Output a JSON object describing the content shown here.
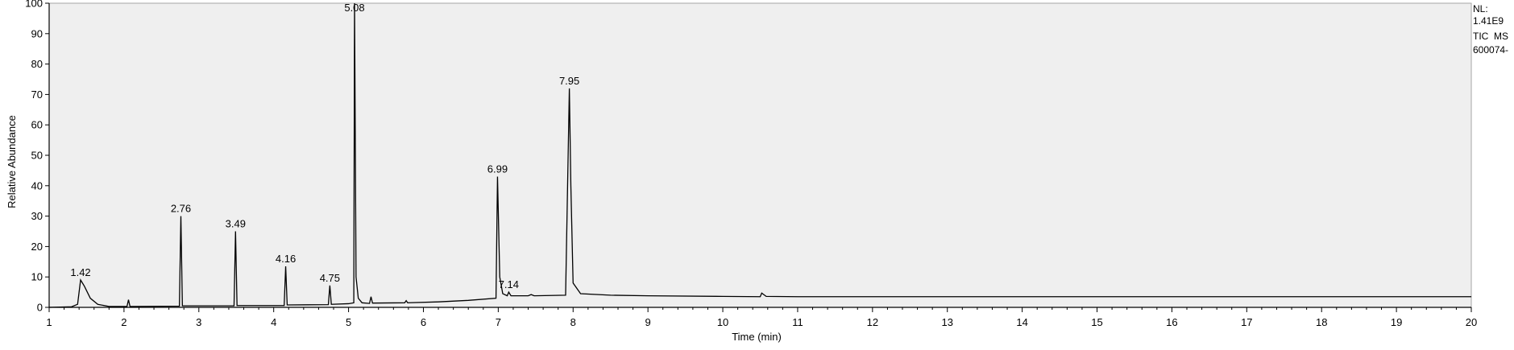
{
  "chart_data": {
    "type": "line",
    "xlabel": "Time (min)",
    "ylabel": "Relative Abundance",
    "xlim": [
      1,
      20
    ],
    "ylim": [
      0,
      100
    ],
    "x_ticks": [
      "1",
      "2",
      "3",
      "4",
      "5",
      "6",
      "7",
      "8",
      "9",
      "10",
      "11",
      "12",
      "13",
      "14",
      "15",
      "16",
      "17",
      "18",
      "19",
      "20"
    ],
    "y_ticks": [
      "0",
      "10",
      "20",
      "30",
      "40",
      "50",
      "60",
      "70",
      "80",
      "90",
      "100"
    ],
    "info": [
      "NL:",
      "1.41E9",
      "TIC  MS",
      "600074-"
    ],
    "peak_labels": [
      {
        "x": 1.42,
        "y": 9,
        "text": "1.42"
      },
      {
        "x": 2.76,
        "y": 30,
        "text": "2.76"
      },
      {
        "x": 3.49,
        "y": 25,
        "text": "3.49"
      },
      {
        "x": 4.16,
        "y": 13.5,
        "text": "4.16"
      },
      {
        "x": 4.75,
        "y": 7.2,
        "text": "4.75"
      },
      {
        "x": 5.08,
        "y": 100,
        "text": "5.08"
      },
      {
        "x": 6.99,
        "y": 43,
        "text": "6.99"
      },
      {
        "x": 7.14,
        "y": 5,
        "text": "7.14"
      },
      {
        "x": 7.95,
        "y": 72,
        "text": "7.95"
      }
    ],
    "series": [
      {
        "points": [
          [
            1.0,
            0.0
          ],
          [
            1.3,
            0.2
          ],
          [
            1.38,
            1.0
          ],
          [
            1.42,
            9.0
          ],
          [
            1.47,
            7.0
          ],
          [
            1.55,
            3.0
          ],
          [
            1.65,
            1.0
          ],
          [
            1.8,
            0.3
          ],
          [
            2.0,
            0.3
          ],
          [
            2.04,
            0.3
          ],
          [
            2.06,
            2.5
          ],
          [
            2.08,
            0.3
          ],
          [
            2.74,
            0.4
          ],
          [
            2.76,
            30.0
          ],
          [
            2.78,
            0.5
          ],
          [
            3.47,
            0.5
          ],
          [
            3.49,
            25.0
          ],
          [
            3.51,
            0.6
          ],
          [
            4.14,
            0.6
          ],
          [
            4.16,
            13.5
          ],
          [
            4.18,
            0.8
          ],
          [
            4.73,
            0.9
          ],
          [
            4.75,
            7.2
          ],
          [
            4.77,
            1.0
          ],
          [
            5.0,
            1.2
          ],
          [
            5.07,
            1.5
          ],
          [
            5.08,
            100.0
          ],
          [
            5.1,
            10.0
          ],
          [
            5.13,
            3.0
          ],
          [
            5.18,
            1.5
          ],
          [
            5.28,
            1.3
          ],
          [
            5.3,
            3.5
          ],
          [
            5.32,
            1.4
          ],
          [
            5.75,
            1.5
          ],
          [
            5.77,
            2.2
          ],
          [
            5.79,
            1.5
          ],
          [
            6.2,
            1.8
          ],
          [
            6.6,
            2.3
          ],
          [
            6.97,
            3.0
          ],
          [
            6.99,
            43.0
          ],
          [
            7.02,
            10.0
          ],
          [
            7.06,
            4.5
          ],
          [
            7.12,
            3.8
          ],
          [
            7.14,
            5.0
          ],
          [
            7.17,
            3.8
          ],
          [
            7.4,
            3.8
          ],
          [
            7.44,
            4.2
          ],
          [
            7.48,
            3.8
          ],
          [
            7.9,
            4.0
          ],
          [
            7.93,
            45.0
          ],
          [
            7.95,
            72.0
          ],
          [
            7.97,
            40.0
          ],
          [
            8.0,
            8.0
          ],
          [
            8.1,
            4.5
          ],
          [
            8.5,
            4.0
          ],
          [
            9.0,
            3.8
          ],
          [
            10.0,
            3.6
          ],
          [
            10.5,
            3.5
          ],
          [
            10.52,
            4.7
          ],
          [
            10.58,
            3.6
          ],
          [
            11.0,
            3.5
          ],
          [
            12.0,
            3.5
          ],
          [
            13.0,
            3.5
          ],
          [
            14.0,
            3.5
          ],
          [
            15.0,
            3.5
          ],
          [
            16.0,
            3.5
          ],
          [
            17.0,
            3.5
          ],
          [
            18.0,
            3.5
          ],
          [
            19.0,
            3.5
          ],
          [
            20.0,
            3.5
          ]
        ]
      }
    ]
  },
  "colors": {
    "plot_background": "#efefef",
    "trace": "#000000",
    "axis": "#000000",
    "frame": "#a6a6a6"
  }
}
